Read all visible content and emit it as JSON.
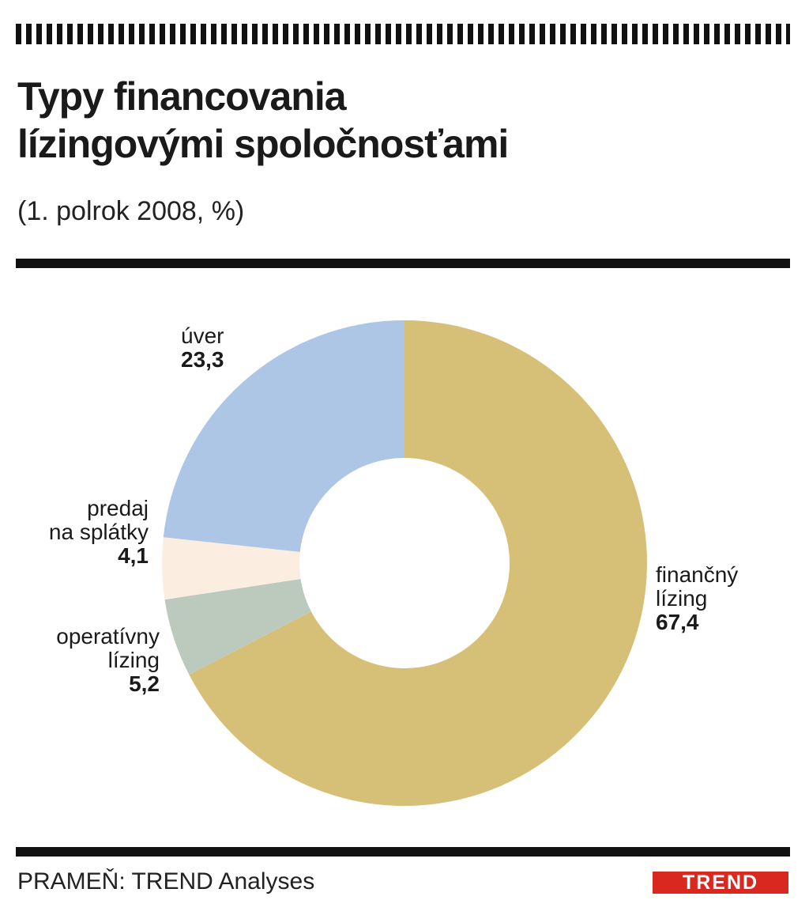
{
  "title_lines": [
    "Typy financovania",
    "lízingovými spoločnosťami"
  ],
  "subtitle": "(1. polrok 2008, %)",
  "source": "PRAMEŇ: TREND Analyses",
  "logo": "TREND",
  "chart_data": {
    "type": "pie",
    "variant": "donut",
    "title": "Typy financovania lízingovými spoločnosťami",
    "subtitle": "(1. polrok 2008, %)",
    "unit": "%",
    "slices": [
      {
        "label": "finančný lízing",
        "label_lines": [
          "finančný",
          "lízing"
        ],
        "value": 67.4,
        "display": "67,4",
        "color": "#d6c078"
      },
      {
        "label": "operatívny lízing",
        "label_lines": [
          "operatívny",
          "lízing"
        ],
        "value": 5.2,
        "display": "5,2",
        "color": "#bcc9bd"
      },
      {
        "label": "predaj na splátky",
        "label_lines": [
          "predaj",
          "na splátky"
        ],
        "value": 4.1,
        "display": "4,1",
        "color": "#fbeee0"
      },
      {
        "label": "úver",
        "label_lines": [
          "úver"
        ],
        "value": 23.3,
        "display": "23,3",
        "color": "#adc6e6"
      }
    ],
    "start_angle_deg": 0,
    "direction": "clockwise",
    "legend": "none"
  }
}
